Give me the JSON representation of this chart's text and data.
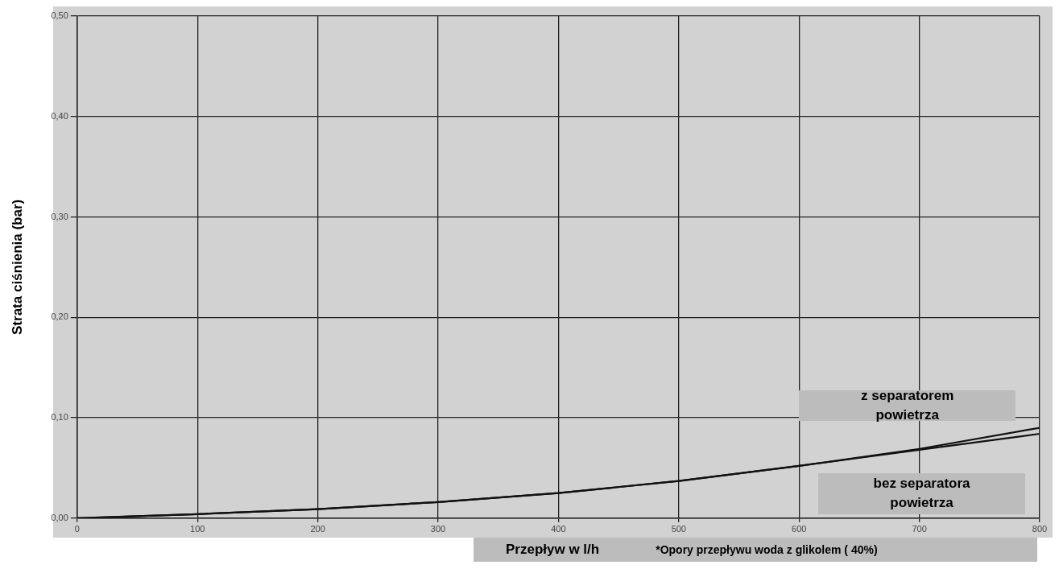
{
  "chart_data": {
    "type": "line",
    "ylabel": "Strata ciśnienia (bar)",
    "xlabel": "Przepływ w l/h",
    "annotations": [
      "*Opory przepływu woda z glikolem ( 40%)"
    ],
    "x": [
      0,
      100,
      200,
      300,
      400,
      500,
      600,
      700,
      800
    ],
    "series": [
      {
        "name": "z separatorem powietrza",
        "color": "#111111",
        "values": [
          0,
          0.004,
          0.009,
          0.016,
          0.025,
          0.037,
          0.052,
          0.069,
          0.09
        ]
      },
      {
        "name": "bez separatora powietrza",
        "color": "#111111",
        "values": [
          0,
          0.004,
          0.009,
          0.016,
          0.025,
          0.037,
          0.052,
          0.068,
          0.084
        ]
      }
    ],
    "xlim": [
      0,
      800
    ],
    "xticks": [
      0,
      100,
      200,
      300,
      400,
      500,
      600,
      700,
      800
    ],
    "ylim": [
      0,
      0.5
    ],
    "yticks": [
      {
        "value": 0,
        "label": "0,00"
      },
      {
        "value": 0.1,
        "label": "0,10"
      },
      {
        "value": 0.2,
        "label": "0,20"
      },
      {
        "value": 0.3,
        "label": "0,30"
      },
      {
        "value": 0.4,
        "label": "0,40"
      },
      {
        "value": 0.5,
        "label": "0,50"
      }
    ],
    "grid": true,
    "legend": false,
    "marker": "none",
    "line_style": "solid"
  }
}
